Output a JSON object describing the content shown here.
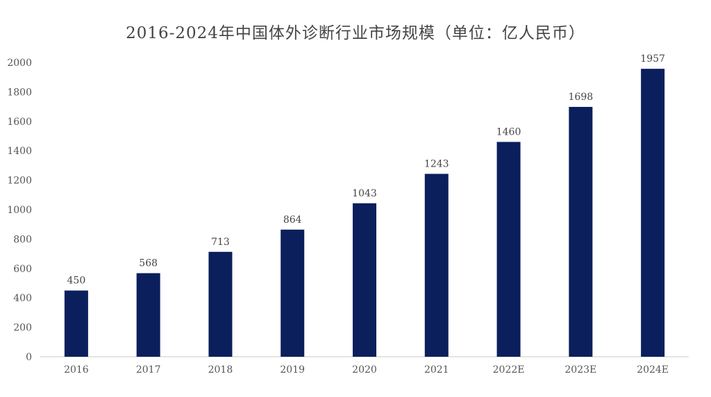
{
  "chart_data": {
    "type": "bar",
    "title": "2016-2024年中国体外诊断行业市场规模（单位：亿人民币）",
    "xlabel": "",
    "ylabel": "",
    "categories": [
      "2016",
      "2017",
      "2018",
      "2019",
      "2020",
      "2021",
      "2022E",
      "2023E",
      "2024E"
    ],
    "values": [
      450,
      568,
      713,
      864,
      1043,
      1243,
      1460,
      1698,
      1957
    ],
    "ylim": [
      0,
      2000
    ],
    "yticks": [
      0,
      200,
      400,
      600,
      800,
      1000,
      1200,
      1400,
      1600,
      1800,
      2000
    ],
    "bar_color": "#0b1f5c",
    "axis_color": "#c8c8c8",
    "grid": false,
    "legend": "none"
  }
}
